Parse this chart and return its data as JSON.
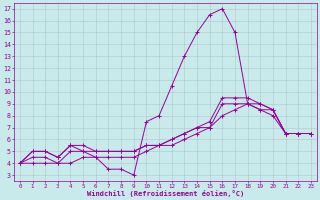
{
  "xlabel": "Windchill (Refroidissement éolien,°C)",
  "background_color": "#c8eaea",
  "line_color": "#990099",
  "grid_color": "#b0c8c8",
  "xmin": 0,
  "xmax": 23,
  "ymin": 3,
  "ymax": 17,
  "line1_x": [
    0,
    1,
    2,
    3,
    4,
    5,
    6,
    7,
    8,
    9,
    10,
    11,
    12,
    13,
    14,
    15,
    16,
    17,
    18,
    19,
    20,
    21,
    22,
    23
  ],
  "line1_y": [
    4,
    5,
    5,
    4.5,
    5.5,
    5,
    4.5,
    3.5,
    3.5,
    3,
    7.5,
    8.0,
    10.5,
    13,
    15,
    16.5,
    17,
    15,
    9,
    8.5,
    8.5,
    6.5,
    6.5,
    6.5
  ],
  "line2_x": [
    0,
    1,
    2,
    3,
    4,
    5,
    6,
    7,
    8,
    9,
    10,
    11,
    12,
    13,
    14,
    15,
    16,
    17,
    18,
    19,
    20,
    21,
    22,
    23
  ],
  "line2_y": [
    4,
    5,
    5,
    4.5,
    5.5,
    5.5,
    5,
    5,
    5,
    5,
    5.5,
    5.5,
    6,
    6.5,
    7,
    7,
    9,
    9,
    9,
    9,
    8.5,
    6.5,
    6.5,
    6.5
  ],
  "line3_x": [
    0,
    1,
    2,
    3,
    4,
    5,
    6,
    7,
    8,
    9,
    10,
    11,
    12,
    13,
    14,
    15,
    16,
    17,
    18,
    19,
    20,
    21,
    22,
    23
  ],
  "line3_y": [
    4,
    4.5,
    4.5,
    4,
    5,
    5,
    5,
    5,
    5,
    5,
    5.5,
    5.5,
    6,
    6.5,
    7,
    7.5,
    9.5,
    9.5,
    9.5,
    9,
    8.5,
    6.5,
    6.5,
    6.5
  ],
  "line4_x": [
    0,
    1,
    2,
    3,
    4,
    5,
    6,
    7,
    8,
    9,
    10,
    11,
    12,
    13,
    14,
    15,
    16,
    17,
    18,
    19,
    20,
    21,
    22,
    23
  ],
  "line4_y": [
    4,
    4,
    4,
    4,
    4,
    4.5,
    4.5,
    4.5,
    4.5,
    4.5,
    5,
    5.5,
    5.5,
    6,
    6.5,
    7,
    8,
    8.5,
    9,
    8.5,
    8,
    6.5,
    6.5,
    6.5
  ]
}
